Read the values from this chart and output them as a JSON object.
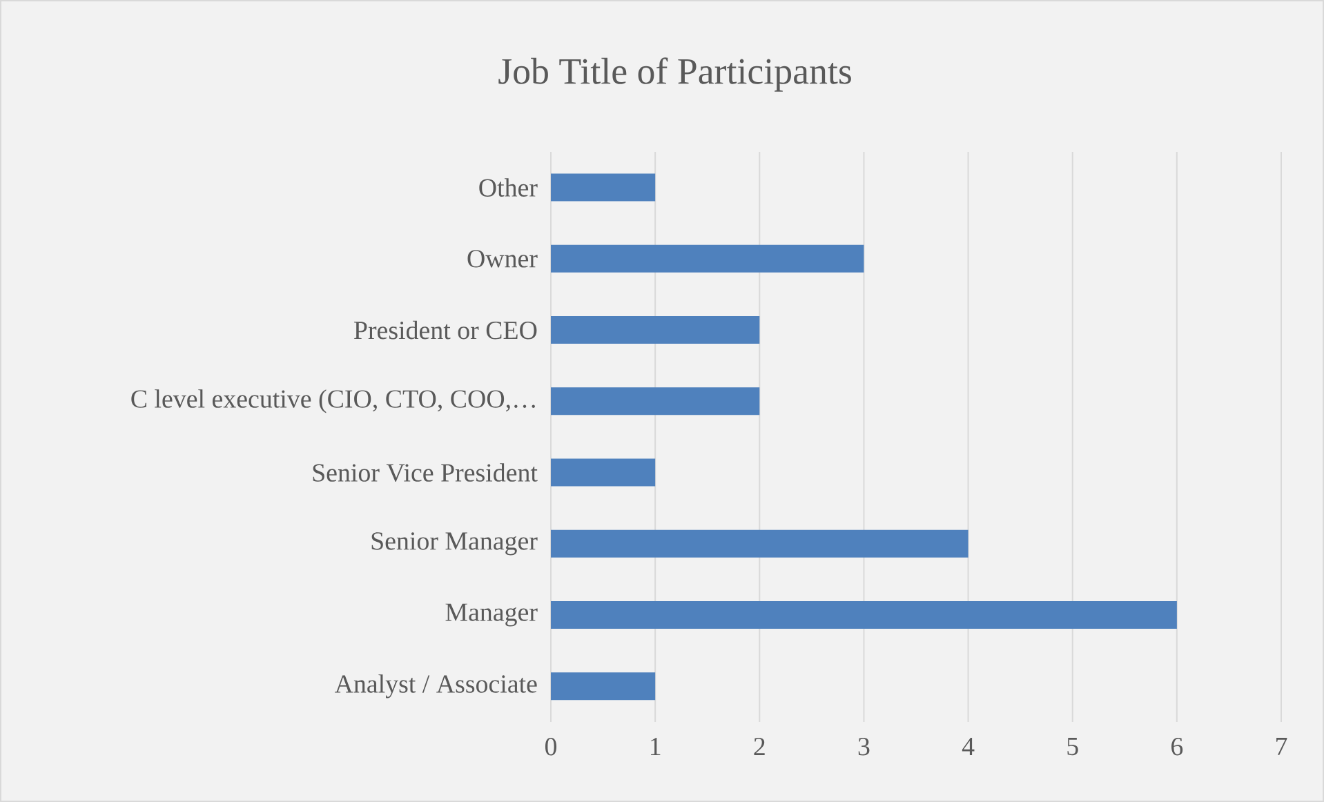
{
  "chart_data": {
    "type": "bar",
    "orientation": "horizontal",
    "title": "Job Title of Participants",
    "categories": [
      "Other",
      "Owner",
      "President or CEO",
      "C level executive (CIO, CTO, COO,…",
      "Senior Vice President",
      "Senior Manager",
      "Manager",
      "Analyst / Associate"
    ],
    "values": [
      1,
      3,
      2,
      2,
      1,
      4,
      6,
      1
    ],
    "color": "#4f81bd",
    "xlim": [
      0,
      7
    ],
    "xticks": [
      0,
      1,
      2,
      3,
      4,
      5,
      6,
      7
    ],
    "grid": "x"
  }
}
